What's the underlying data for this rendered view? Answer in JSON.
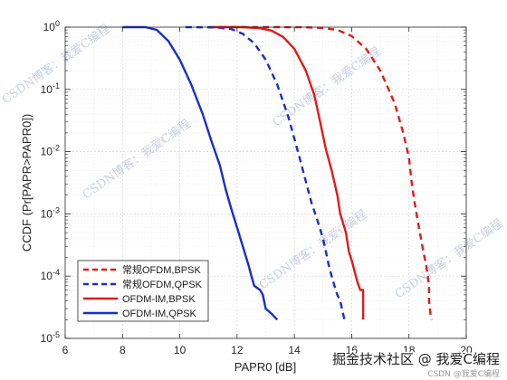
{
  "chart_data": {
    "type": "line",
    "xlabel": "PAPR0 [dB]",
    "ylabel": "CCDF (Pr[PAPR>PAPR0])",
    "xlim": [
      6,
      20
    ],
    "ylim": [
      1e-05,
      1
    ],
    "yscale": "log",
    "grid": true,
    "legend_position": "bottom-left",
    "x_ticks": [
      "6",
      "8",
      "10",
      "12",
      "14",
      "16",
      "18",
      "20"
    ],
    "y_ticks": [
      {
        "value": 1,
        "base": "10",
        "exp": "0"
      },
      {
        "value": 0.1,
        "base": "10",
        "exp": "-1"
      },
      {
        "value": 0.01,
        "base": "10",
        "exp": "-2"
      },
      {
        "value": 0.001,
        "base": "10",
        "exp": "-3"
      },
      {
        "value": 0.0001,
        "base": "10",
        "exp": "-4"
      },
      {
        "value": 1e-05,
        "base": "10",
        "exp": "-5"
      }
    ],
    "series": [
      {
        "name": "常规OFDM,BPSK",
        "color": "#e01b1b",
        "dash": true,
        "points": [
          [
            11.0,
            1
          ],
          [
            12.5,
            1
          ],
          [
            13.5,
            1
          ],
          [
            14.3,
            0.995
          ],
          [
            15.0,
            0.97
          ],
          [
            15.5,
            0.9
          ],
          [
            16.0,
            0.72
          ],
          [
            16.5,
            0.45
          ],
          [
            17.0,
            0.2
          ],
          [
            17.5,
            0.06
          ],
          [
            17.8,
            0.02
          ],
          [
            18.0,
            0.008
          ],
          [
            18.1,
            0.003
          ],
          [
            18.2,
            0.0015
          ],
          [
            18.3,
            0.0008
          ],
          [
            18.4,
            0.00045
          ],
          [
            18.5,
            0.00025
          ],
          [
            18.6,
            0.00015
          ],
          [
            18.7,
            7e-05
          ],
          [
            18.7,
            4e-05
          ],
          [
            18.75,
            2.5e-05
          ],
          [
            18.8,
            2e-05
          ]
        ]
      },
      {
        "name": "常规OFDM,QPSK",
        "color": "#1a2ec8",
        "dash": true,
        "points": [
          [
            10.2,
            1
          ],
          [
            11.3,
            0.99
          ],
          [
            11.8,
            0.93
          ],
          [
            12.2,
            0.78
          ],
          [
            12.6,
            0.55
          ],
          [
            13.0,
            0.3
          ],
          [
            13.4,
            0.12
          ],
          [
            13.8,
            0.035
          ],
          [
            14.1,
            0.011
          ],
          [
            14.3,
            0.005
          ],
          [
            14.6,
            0.0015
          ],
          [
            14.8,
            0.0008
          ],
          [
            15.0,
            0.0004
          ],
          [
            15.1,
            0.00025
          ],
          [
            15.2,
            0.00015
          ],
          [
            15.3,
            0.0001
          ],
          [
            15.4,
            7e-05
          ],
          [
            15.5,
            5e-05
          ],
          [
            15.6,
            4e-05
          ],
          [
            15.7,
            2.5e-05
          ],
          [
            15.75,
            2e-05
          ]
        ]
      },
      {
        "name": "OFDM-IM,BPSK",
        "color": "#e01b1b",
        "dash": false,
        "points": [
          [
            11.2,
            1
          ],
          [
            12.2,
            1
          ],
          [
            12.8,
            0.96
          ],
          [
            13.2,
            0.88
          ],
          [
            13.6,
            0.7
          ],
          [
            14.0,
            0.45
          ],
          [
            14.4,
            0.2
          ],
          [
            14.7,
            0.08
          ],
          [
            14.9,
            0.03
          ],
          [
            15.1,
            0.011
          ],
          [
            15.3,
            0.005
          ],
          [
            15.5,
            0.002
          ],
          [
            15.6,
            0.001
          ],
          [
            15.8,
            0.0005
          ],
          [
            15.9,
            0.00025
          ],
          [
            16.0,
            0.00018
          ],
          [
            16.1,
            0.00012
          ],
          [
            16.2,
            8e-05
          ],
          [
            16.3,
            6e-05
          ],
          [
            16.4,
            6e-05
          ],
          [
            16.4,
            3e-05
          ],
          [
            16.4,
            2e-05
          ]
        ]
      },
      {
        "name": "OFDM-IM,QPSK",
        "color": "#1a2ec8",
        "dash": false,
        "points": [
          [
            8.0,
            1
          ],
          [
            8.8,
            1
          ],
          [
            9.2,
            0.9
          ],
          [
            9.6,
            0.6
          ],
          [
            10.0,
            0.3
          ],
          [
            10.4,
            0.12
          ],
          [
            10.8,
            0.04
          ],
          [
            11.1,
            0.015
          ],
          [
            11.4,
            0.006
          ],
          [
            11.6,
            0.0025
          ],
          [
            11.8,
            0.0012
          ],
          [
            12.0,
            0.0006
          ],
          [
            12.2,
            0.0003
          ],
          [
            12.4,
            0.00015
          ],
          [
            12.5,
            0.0001
          ],
          [
            12.6,
            7e-05
          ],
          [
            12.8,
            6e-05
          ],
          [
            12.9,
            5e-05
          ],
          [
            13.0,
            3e-05
          ],
          [
            13.2,
            2.5e-05
          ],
          [
            13.4,
            2e-05
          ]
        ]
      }
    ]
  },
  "watermarks": [
    "CSDN博客：我爱C编程",
    "CSDN博客：我爱C编程",
    "CSDN博客：我爱C编程",
    "CSDN博客：我爱C编程",
    "CSDN博客：我爱C编程"
  ],
  "footer": {
    "brand": "掘金技术社区 @ 我爱C编程",
    "small": "CSDN @我爱C编程"
  }
}
